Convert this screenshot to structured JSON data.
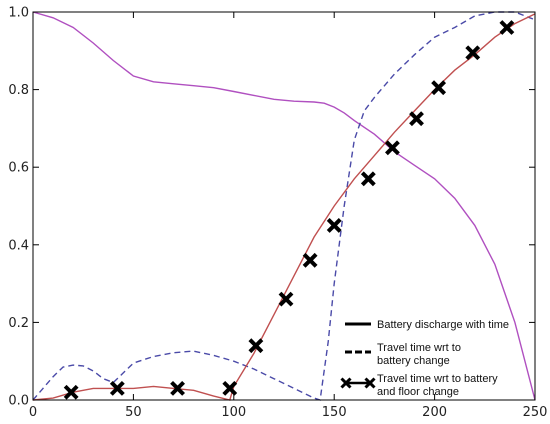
{
  "chart_data": {
    "type": "line",
    "title": "",
    "xlabel": "",
    "ylabel": "",
    "xlim": [
      0,
      250
    ],
    "ylim": [
      0,
      1.0
    ],
    "x_ticks": [
      0,
      50,
      100,
      150,
      200,
      250
    ],
    "x_tick_labels": [
      "0",
      "50",
      "100",
      "150",
      "200",
      "250"
    ],
    "y_ticks": [
      0.0,
      0.2,
      0.4,
      0.6,
      0.8,
      1.0
    ],
    "y_tick_labels": [
      "0.0",
      "0.2",
      "0.4",
      "0.6",
      "0.8",
      "1.0"
    ],
    "grid": false,
    "legend_position": "bottom-right",
    "legend": [
      {
        "style": "solid",
        "label": "Battery discharge with time"
      },
      {
        "style": "dashed",
        "label_lines": [
          "Travel time wrt to",
          "battery change"
        ]
      },
      {
        "style": "x-marker",
        "label_lines": [
          "Travel time wrt to battery",
          "and floor change"
        ]
      }
    ],
    "series": [
      {
        "key": "battery",
        "color": "#b050c0",
        "style": "solid",
        "x": [
          0,
          10,
          20,
          30,
          40,
          50,
          60,
          70,
          80,
          90,
          100,
          110,
          120,
          130,
          140,
          145,
          150,
          155,
          160,
          170,
          180,
          190,
          200,
          210,
          220,
          230,
          240,
          250
        ],
        "y": [
          1.0,
          0.985,
          0.96,
          0.92,
          0.875,
          0.835,
          0.82,
          0.815,
          0.81,
          0.805,
          0.795,
          0.785,
          0.775,
          0.77,
          0.768,
          0.765,
          0.755,
          0.74,
          0.72,
          0.685,
          0.64,
          0.605,
          0.57,
          0.52,
          0.45,
          0.35,
          0.2,
          0.0
        ]
      },
      {
        "key": "travel_battery",
        "color": "#4a4aa8",
        "style": "dashed",
        "x": [
          0,
          5,
          10,
          15,
          20,
          25,
          30,
          35,
          40,
          45,
          50,
          60,
          70,
          80,
          90,
          100,
          110,
          120,
          130,
          140,
          143,
          147,
          150,
          155,
          160,
          165,
          170,
          180,
          190,
          200,
          210,
          220,
          230,
          240,
          250
        ],
        "y": [
          0.0,
          0.03,
          0.06,
          0.085,
          0.09,
          0.088,
          0.075,
          0.055,
          0.045,
          0.07,
          0.095,
          0.112,
          0.122,
          0.126,
          0.115,
          0.1,
          0.08,
          0.055,
          0.03,
          0.005,
          0.0,
          0.15,
          0.3,
          0.5,
          0.67,
          0.745,
          0.78,
          0.84,
          0.89,
          0.935,
          0.96,
          0.99,
          1.0,
          1.0,
          0.98
        ]
      },
      {
        "key": "travel_battery_floor",
        "color": "#c05050",
        "style": "solid",
        "marker": "x",
        "x": [
          0,
          10,
          20,
          30,
          40,
          50,
          60,
          70,
          80,
          90,
          98,
          100,
          110,
          120,
          130,
          140,
          150,
          160,
          170,
          180,
          190,
          200,
          210,
          220,
          230,
          240,
          250
        ],
        "y": [
          0.0,
          0.005,
          0.02,
          0.03,
          0.03,
          0.03,
          0.035,
          0.03,
          0.025,
          0.01,
          0.0,
          0.035,
          0.12,
          0.22,
          0.32,
          0.42,
          0.5,
          0.57,
          0.63,
          0.69,
          0.745,
          0.8,
          0.85,
          0.89,
          0.935,
          0.97,
          0.995
        ],
        "markers_x": [
          19,
          42,
          72,
          98,
          111,
          126,
          138,
          150,
          167,
          179,
          191,
          202,
          219,
          236
        ],
        "markers_y": [
          0.02,
          0.03,
          0.03,
          0.03,
          0.14,
          0.26,
          0.36,
          0.45,
          0.57,
          0.65,
          0.725,
          0.805,
          0.895,
          0.96
        ]
      }
    ]
  }
}
